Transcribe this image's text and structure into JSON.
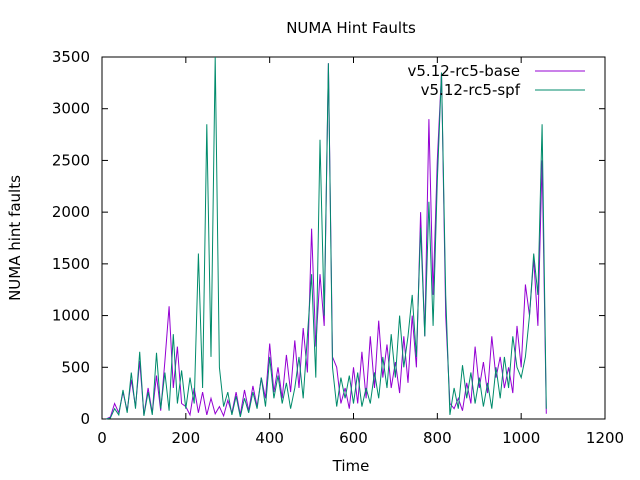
{
  "chart_data": {
    "type": "line",
    "title": "NUMA Hint Faults",
    "xlabel": "Time",
    "ylabel": "NUMA hint faults",
    "xlim": [
      0,
      1200
    ],
    "ylim": [
      0,
      3500
    ],
    "x_ticks": [
      0,
      200,
      400,
      600,
      800,
      1000,
      1200
    ],
    "y_ticks": [
      0,
      500,
      1000,
      1500,
      2000,
      2500,
      3000,
      3500
    ],
    "grid": false,
    "legend_position": "top-right",
    "series": [
      {
        "name": "v5.12-rc5-base",
        "color": "#9400d3",
        "points": [
          [
            10,
            0
          ],
          [
            20,
            20
          ],
          [
            30,
            150
          ],
          [
            40,
            60
          ],
          [
            50,
            260
          ],
          [
            60,
            80
          ],
          [
            70,
            380
          ],
          [
            80,
            120
          ],
          [
            90,
            560
          ],
          [
            100,
            40
          ],
          [
            110,
            300
          ],
          [
            120,
            60
          ],
          [
            130,
            420
          ],
          [
            140,
            80
          ],
          [
            150,
            560
          ],
          [
            160,
            1090
          ],
          [
            170,
            300
          ],
          [
            180,
            700
          ],
          [
            190,
            150
          ],
          [
            200,
            120
          ],
          [
            210,
            40
          ],
          [
            220,
            300
          ],
          [
            230,
            60
          ],
          [
            240,
            260
          ],
          [
            250,
            40
          ],
          [
            260,
            200
          ],
          [
            270,
            50
          ],
          [
            280,
            120
          ],
          [
            290,
            30
          ],
          [
            300,
            180
          ],
          [
            310,
            60
          ],
          [
            320,
            260
          ],
          [
            330,
            40
          ],
          [
            340,
            280
          ],
          [
            350,
            80
          ],
          [
            360,
            320
          ],
          [
            370,
            120
          ],
          [
            380,
            400
          ],
          [
            390,
            200
          ],
          [
            400,
            730
          ],
          [
            410,
            260
          ],
          [
            420,
            500
          ],
          [
            430,
            200
          ],
          [
            440,
            620
          ],
          [
            450,
            260
          ],
          [
            460,
            760
          ],
          [
            470,
            300
          ],
          [
            480,
            880
          ],
          [
            490,
            450
          ],
          [
            500,
            1840
          ],
          [
            510,
            700
          ],
          [
            520,
            1400
          ],
          [
            530,
            900
          ],
          [
            540,
            3440
          ],
          [
            550,
            600
          ],
          [
            560,
            500
          ],
          [
            570,
            150
          ],
          [
            580,
            300
          ],
          [
            590,
            100
          ],
          [
            600,
            500
          ],
          [
            610,
            150
          ],
          [
            620,
            650
          ],
          [
            630,
            200
          ],
          [
            640,
            800
          ],
          [
            650,
            300
          ],
          [
            660,
            950
          ],
          [
            670,
            400
          ],
          [
            680,
            720
          ],
          [
            690,
            300
          ],
          [
            700,
            550
          ],
          [
            710,
            250
          ],
          [
            720,
            800
          ],
          [
            730,
            350
          ],
          [
            740,
            1000
          ],
          [
            750,
            500
          ],
          [
            760,
            2000
          ],
          [
            770,
            800
          ],
          [
            780,
            2900
          ],
          [
            790,
            1200
          ],
          [
            800,
            2500
          ],
          [
            810,
            3350
          ],
          [
            820,
            1000
          ],
          [
            830,
            150
          ],
          [
            840,
            100
          ],
          [
            850,
            200
          ],
          [
            860,
            80
          ],
          [
            870,
            350
          ],
          [
            880,
            150
          ],
          [
            890,
            700
          ],
          [
            900,
            300
          ],
          [
            910,
            550
          ],
          [
            920,
            250
          ],
          [
            930,
            800
          ],
          [
            940,
            400
          ],
          [
            950,
            600
          ],
          [
            960,
            300
          ],
          [
            970,
            500
          ],
          [
            980,
            250
          ],
          [
            990,
            900
          ],
          [
            1000,
            500
          ],
          [
            1010,
            1300
          ],
          [
            1020,
            1000
          ],
          [
            1030,
            1550
          ],
          [
            1040,
            900
          ],
          [
            1050,
            2500
          ],
          [
            1060,
            50
          ]
        ]
      },
      {
        "name": "v5.12-rc5-spf",
        "color": "#008b6b",
        "points": [
          [
            10,
            0
          ],
          [
            20,
            10
          ],
          [
            30,
            100
          ],
          [
            40,
            40
          ],
          [
            50,
            280
          ],
          [
            60,
            60
          ],
          [
            70,
            450
          ],
          [
            80,
            100
          ],
          [
            90,
            650
          ],
          [
            100,
            30
          ],
          [
            110,
            260
          ],
          [
            120,
            40
          ],
          [
            130,
            640
          ],
          [
            140,
            100
          ],
          [
            150,
            450
          ],
          [
            160,
            80
          ],
          [
            170,
            820
          ],
          [
            180,
            150
          ],
          [
            190,
            470
          ],
          [
            200,
            100
          ],
          [
            210,
            400
          ],
          [
            220,
            150
          ],
          [
            230,
            1600
          ],
          [
            240,
            300
          ],
          [
            250,
            2850
          ],
          [
            260,
            600
          ],
          [
            270,
            3500
          ],
          [
            280,
            500
          ],
          [
            290,
            120
          ],
          [
            300,
            260
          ],
          [
            310,
            40
          ],
          [
            320,
            220
          ],
          [
            330,
            20
          ],
          [
            340,
            200
          ],
          [
            350,
            60
          ],
          [
            360,
            260
          ],
          [
            370,
            100
          ],
          [
            380,
            400
          ],
          [
            390,
            120
          ],
          [
            400,
            600
          ],
          [
            410,
            200
          ],
          [
            420,
            420
          ],
          [
            430,
            150
          ],
          [
            440,
            350
          ],
          [
            450,
            100
          ],
          [
            460,
            300
          ],
          [
            470,
            600
          ],
          [
            480,
            200
          ],
          [
            490,
            800
          ],
          [
            500,
            1400
          ],
          [
            510,
            400
          ],
          [
            520,
            2700
          ],
          [
            530,
            1000
          ],
          [
            540,
            3440
          ],
          [
            550,
            500
          ],
          [
            560,
            120
          ],
          [
            570,
            400
          ],
          [
            580,
            200
          ],
          [
            590,
            420
          ],
          [
            600,
            150
          ],
          [
            610,
            450
          ],
          [
            620,
            120
          ],
          [
            630,
            300
          ],
          [
            640,
            150
          ],
          [
            650,
            450
          ],
          [
            660,
            200
          ],
          [
            670,
            600
          ],
          [
            680,
            300
          ],
          [
            690,
            820
          ],
          [
            700,
            400
          ],
          [
            710,
            1000
          ],
          [
            720,
            500
          ],
          [
            730,
            800
          ],
          [
            740,
            1200
          ],
          [
            750,
            600
          ],
          [
            760,
            1850
          ],
          [
            770,
            800
          ],
          [
            780,
            2100
          ],
          [
            790,
            900
          ],
          [
            800,
            2300
          ],
          [
            810,
            3350
          ],
          [
            820,
            1200
          ],
          [
            830,
            40
          ],
          [
            840,
            300
          ],
          [
            850,
            100
          ],
          [
            860,
            520
          ],
          [
            870,
            200
          ],
          [
            880,
            450
          ],
          [
            890,
            150
          ],
          [
            900,
            400
          ],
          [
            910,
            120
          ],
          [
            920,
            350
          ],
          [
            930,
            100
          ],
          [
            940,
            500
          ],
          [
            950,
            200
          ],
          [
            960,
            600
          ],
          [
            970,
            300
          ],
          [
            980,
            800
          ],
          [
            990,
            500
          ],
          [
            1000,
            400
          ],
          [
            1010,
            600
          ],
          [
            1020,
            1000
          ],
          [
            1030,
            1600
          ],
          [
            1040,
            1200
          ],
          [
            1050,
            2850
          ],
          [
            1060,
            100
          ]
        ]
      }
    ]
  }
}
